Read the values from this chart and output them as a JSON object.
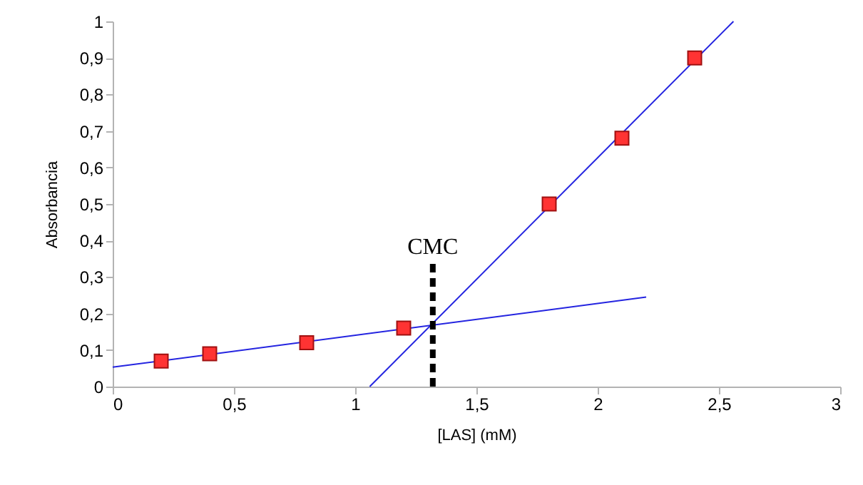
{
  "chart_data": {
    "type": "scatter",
    "xlabel": "[LAS] (mM)",
    "ylabel": "Absorbancia",
    "marker": "square",
    "xlim": [
      0,
      3
    ],
    "ylim": [
      0,
      1
    ],
    "xticks": [
      0,
      {
        "value": 0.5,
        "label": "0,5"
      },
      1,
      {
        "value": 1.5,
        "label": "1,5"
      },
      2,
      {
        "value": 2.5,
        "label": "2,5"
      },
      3
    ],
    "yticks": [
      0,
      {
        "value": 0.1,
        "label": "0,1"
      },
      {
        "value": 0.2,
        "label": "0,2"
      },
      {
        "value": 0.3,
        "label": "0,3"
      },
      {
        "value": 0.4,
        "label": "0,4"
      },
      {
        "value": 0.5,
        "label": "0,5"
      },
      {
        "value": 0.6,
        "label": "0,6"
      },
      {
        "value": 0.7,
        "label": "0,7"
      },
      {
        "value": 0.8,
        "label": "0,8"
      },
      {
        "value": 0.9,
        "label": "0,9"
      },
      1
    ],
    "series": [
      {
        "type": "line",
        "marker": "none",
        "color": "#2424e0",
        "x": [
          0,
          2.2
        ],
        "values": [
          0.053,
          0.245
        ]
      },
      {
        "type": "line",
        "marker": "none",
        "color": "#2424e0",
        "x": [
          1.06,
          2.56
        ],
        "values": [
          0,
          1
        ]
      },
      {
        "type": "line",
        "marker": "none",
        "color": "#000000",
        "line_style": "dashed",
        "x": [
          1.32,
          1.32
        ],
        "values": [
          0,
          0.34
        ]
      },
      {
        "color": "#ff3333",
        "x": [
          0.2,
          0.4,
          0.8,
          1.2,
          1.8,
          2.1,
          2.4
        ],
        "values": [
          0.07,
          0.09,
          0.12,
          0.16,
          0.5,
          0.68,
          0.9
        ]
      }
    ],
    "annotations": [
      "CMC"
    ]
  }
}
